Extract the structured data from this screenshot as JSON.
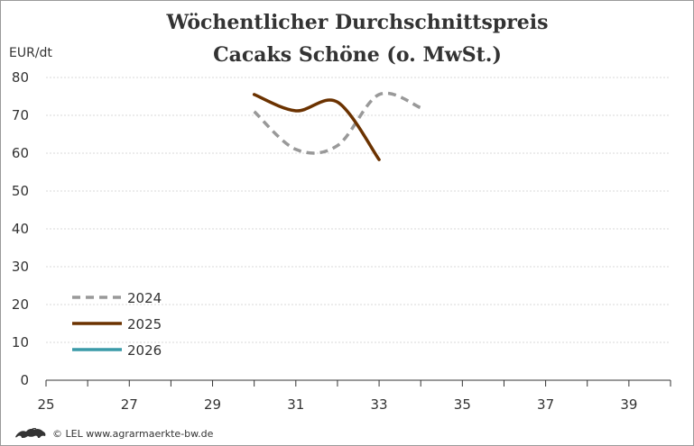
{
  "chart_data": {
    "type": "line",
    "title_lines": [
      "Wöchentlicher Durchschnittspreis",
      "Cacaks Schöne (o. MwSt.)"
    ],
    "ylabel": "EUR/dt",
    "xlabel": "",
    "xlim": [
      25,
      40
    ],
    "ylim": [
      0,
      80
    ],
    "x_ticks": [
      25,
      27,
      29,
      31,
      33,
      35,
      37,
      39
    ],
    "y_ticks": [
      0,
      10,
      20,
      30,
      40,
      50,
      60,
      70,
      80
    ],
    "grid": "horizontal",
    "legend_position": "bottom-left",
    "series": [
      {
        "name": "2024",
        "color": "#999999",
        "style": "dashed",
        "points": [
          [
            30,
            71
          ],
          [
            31,
            61
          ],
          [
            32,
            62
          ],
          [
            33,
            75.5
          ],
          [
            34,
            72
          ]
        ]
      },
      {
        "name": "2025",
        "color": "#6b3200",
        "style": "solid",
        "points": [
          [
            30,
            75.5
          ],
          [
            31,
            71.2
          ],
          [
            32,
            73.5
          ],
          [
            33,
            58.3
          ]
        ]
      },
      {
        "name": "2026",
        "color": "#3a9aa8",
        "style": "solid",
        "points": []
      }
    ]
  },
  "footer": {
    "logo_icon": "lion-logo-icon",
    "text": "© LEL www.agrarmaerkte-bw.de"
  }
}
